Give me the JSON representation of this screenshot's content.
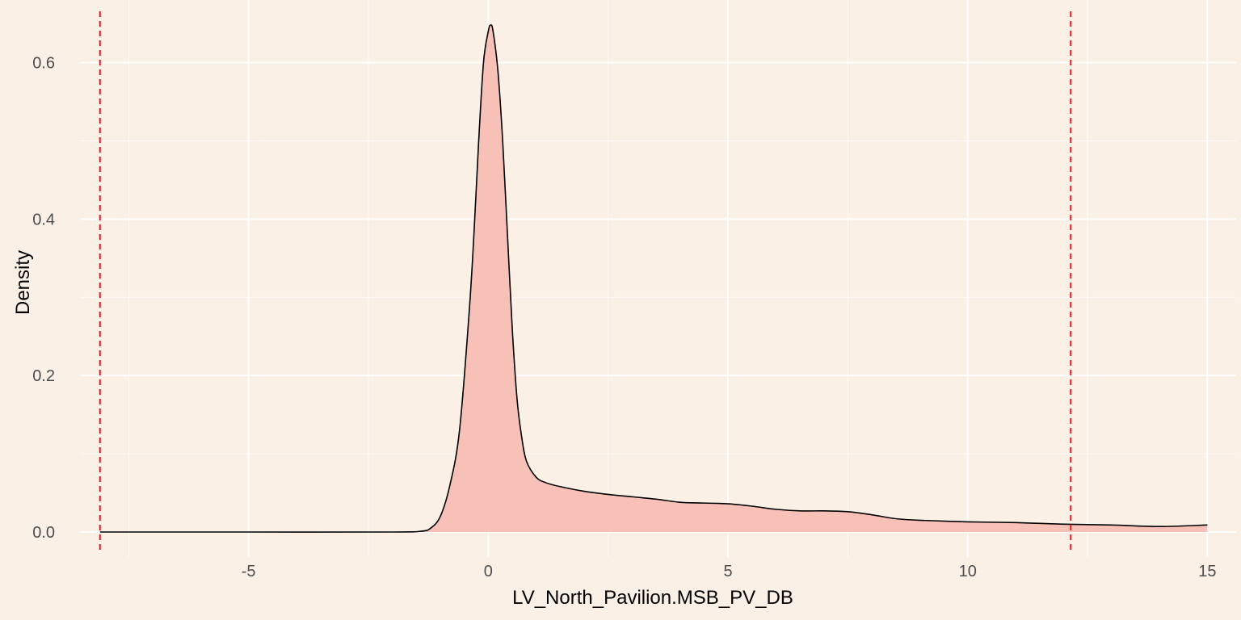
{
  "chart_data": {
    "type": "area",
    "title": "",
    "xlabel": "LV_North_Pavilion.MSB_PV_DB",
    "ylabel": "Density",
    "xlim": [
      -8.5,
      15.6
    ],
    "ylim": [
      -0.032,
      0.68
    ],
    "x_ticks": [
      -5,
      0,
      5,
      10,
      15
    ],
    "x_tick_labels": [
      "-5",
      "0",
      "5",
      "10",
      "15"
    ],
    "y_ticks": [
      0.0,
      0.2,
      0.4,
      0.6
    ],
    "y_tick_labels": [
      "0.0",
      "0.2",
      "0.4",
      "0.6"
    ],
    "grid": true,
    "legend": "none",
    "series": [
      {
        "x": [
          -8.1,
          -5,
          -2,
          -1.4,
          -1.2,
          -1.0,
          -0.8,
          -0.6,
          -0.4,
          -0.3,
          -0.2,
          -0.1,
          0.0,
          0.05,
          0.1,
          0.2,
          0.3,
          0.4,
          0.5,
          0.6,
          0.7,
          0.8,
          1.0,
          1.2,
          1.5,
          2,
          2.5,
          3,
          3.5,
          4,
          4.5,
          5,
          5.5,
          6,
          6.5,
          7,
          7.5,
          8,
          8.5,
          9,
          10,
          11,
          12,
          13,
          14,
          15
        ],
        "y": [
          0.0,
          0.0,
          0.0,
          0.001,
          0.005,
          0.02,
          0.06,
          0.13,
          0.28,
          0.38,
          0.5,
          0.6,
          0.64,
          0.648,
          0.64,
          0.59,
          0.5,
          0.38,
          0.26,
          0.17,
          0.12,
          0.09,
          0.07,
          0.063,
          0.058,
          0.052,
          0.048,
          0.045,
          0.042,
          0.038,
          0.037,
          0.036,
          0.033,
          0.029,
          0.027,
          0.027,
          0.026,
          0.022,
          0.017,
          0.015,
          0.013,
          0.012,
          0.01,
          0.009,
          0.007,
          0.009
        ]
      }
    ],
    "vlines": [
      -8.1,
      12.15
    ],
    "colors": {
      "background": "#faf0e6",
      "grid": "#ffffff",
      "fill": "#f8c1b8",
      "line": "#000000",
      "vline": "#e31a1c",
      "tick_text": "#4d4d4d",
      "axis_title": "#000000"
    }
  }
}
